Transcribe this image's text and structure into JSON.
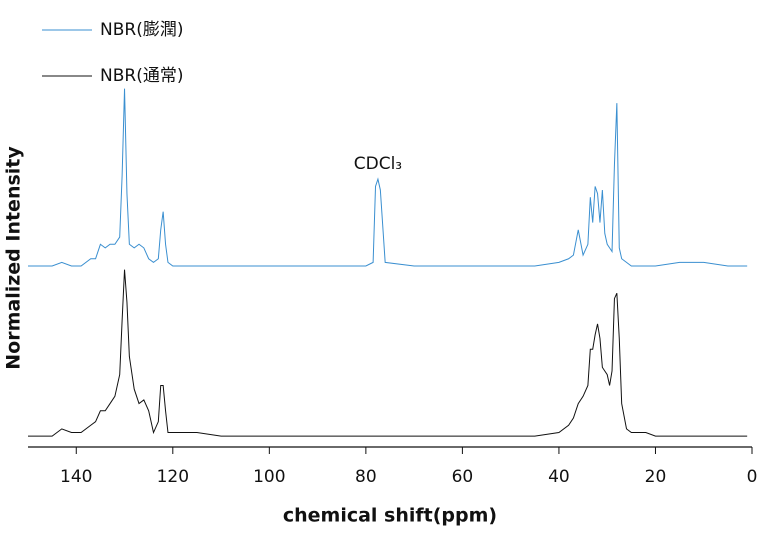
{
  "chart_data": {
    "type": "line",
    "x_label": "chemical shift(ppm)",
    "y_label": "Normalized Intensity",
    "annotation": {
      "text": "CDCl₃",
      "x": 77.5
    },
    "xlim": [
      150,
      0
    ],
    "xticks": [
      140,
      120,
      100,
      80,
      60,
      40,
      20,
      0
    ],
    "ylim": [
      0,
      1
    ],
    "legend": "top-left",
    "x": [
      150,
      145,
      143,
      141,
      139,
      137,
      136,
      135,
      134,
      133,
      132,
      131,
      130.5,
      130,
      129.5,
      129,
      128,
      127,
      126,
      125,
      124,
      123,
      122.5,
      122,
      121.5,
      121,
      120,
      118,
      115,
      110,
      100,
      90,
      80,
      78.5,
      78,
      77.5,
      77,
      76,
      70,
      60,
      50,
      45,
      40,
      38,
      37,
      36,
      35,
      34,
      33.5,
      33,
      32.5,
      32,
      31.5,
      31,
      30.5,
      30,
      29.5,
      29,
      28.5,
      28,
      27.5,
      27,
      26,
      25,
      22,
      20,
      15,
      10,
      5,
      1
    ],
    "series": [
      {
        "name": "NBR(膨潤)",
        "color": "#3a8fd0",
        "values": [
          0.5,
          0.5,
          0.51,
          0.5,
          0.5,
          0.52,
          0.52,
          0.56,
          0.55,
          0.56,
          0.56,
          0.58,
          0.75,
          0.99,
          0.7,
          0.56,
          0.55,
          0.56,
          0.55,
          0.52,
          0.51,
          0.52,
          0.6,
          0.65,
          0.56,
          0.51,
          0.5,
          0.5,
          0.5,
          0.5,
          0.5,
          0.5,
          0.5,
          0.51,
          0.72,
          0.74,
          0.71,
          0.51,
          0.5,
          0.5,
          0.5,
          0.5,
          0.51,
          0.52,
          0.53,
          0.6,
          0.53,
          0.56,
          0.69,
          0.62,
          0.72,
          0.7,
          0.62,
          0.71,
          0.59,
          0.56,
          0.55,
          0.54,
          0.78,
          0.95,
          0.55,
          0.52,
          0.51,
          0.5,
          0.5,
          0.5,
          0.51,
          0.51,
          0.5,
          0.5
        ]
      },
      {
        "name": "NBR(通常)",
        "color": "#111111",
        "values": [
          0.03,
          0.03,
          0.05,
          0.04,
          0.04,
          0.06,
          0.07,
          0.1,
          0.1,
          0.12,
          0.14,
          0.2,
          0.35,
          0.49,
          0.4,
          0.25,
          0.16,
          0.12,
          0.13,
          0.1,
          0.04,
          0.07,
          0.17,
          0.17,
          0.1,
          0.04,
          0.04,
          0.04,
          0.04,
          0.03,
          0.03,
          0.03,
          0.03,
          0.03,
          0.03,
          0.03,
          0.03,
          0.03,
          0.03,
          0.03,
          0.03,
          0.03,
          0.04,
          0.06,
          0.08,
          0.12,
          0.14,
          0.17,
          0.27,
          0.27,
          0.31,
          0.34,
          0.3,
          0.22,
          0.21,
          0.2,
          0.17,
          0.21,
          0.41,
          0.425,
          0.3,
          0.12,
          0.05,
          0.04,
          0.04,
          0.03,
          0.03,
          0.03,
          0.03,
          0.03
        ]
      }
    ]
  }
}
